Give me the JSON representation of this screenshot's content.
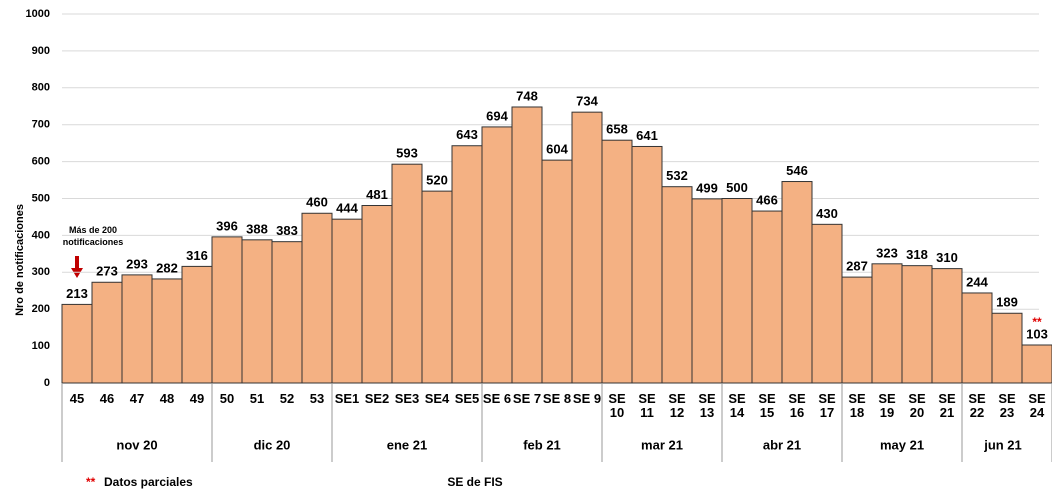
{
  "chart_data": {
    "type": "bar",
    "y_label": "Nro de notificaciones",
    "x_label": "SE de FIS",
    "categories": [
      "45",
      "46",
      "47",
      "48",
      "49",
      "50",
      "51",
      "52",
      "53",
      "SE1",
      "SE2",
      "SE3",
      "SE4",
      "SE5",
      "SE 6",
      "SE 7",
      "SE 8",
      "SE 9",
      "SE 10",
      "SE 11",
      "SE 12",
      "SE 13",
      "SE 14",
      "SE 15",
      "SE 16",
      "SE 17",
      "SE 18",
      "SE 19",
      "SE 20",
      "SE 21",
      "SE 22",
      "SE 23",
      "SE 24"
    ],
    "values": [
      213,
      273,
      293,
      282,
      316,
      396,
      388,
      383,
      460,
      444,
      481,
      593,
      520,
      643,
      694,
      748,
      604,
      734,
      658,
      641,
      532,
      499,
      500,
      466,
      546,
      430,
      287,
      323,
      318,
      310,
      244,
      189,
      103
    ],
    "groups": [
      {
        "label": "nov 20",
        "count": 5
      },
      {
        "label": "dic 20",
        "count": 4
      },
      {
        "label": "ene 21",
        "count": 5
      },
      {
        "label": "feb 21",
        "count": 4
      },
      {
        "label": "mar 21",
        "count": 4
      },
      {
        "label": "abr 21",
        "count": 4
      },
      {
        "label": "may 21",
        "count": 4
      },
      {
        "label": "jun 21",
        "count": 3
      }
    ],
    "color": "#f4b183",
    "ylim": [
      0,
      1000
    ],
    "yticks": [
      0,
      100,
      200,
      300,
      400,
      500,
      600,
      700,
      800,
      900,
      1000
    ],
    "grid": true,
    "annotation": "Más de 200 notificaciones",
    "partial_marker": "**",
    "footnote": "Datos parciales"
  }
}
